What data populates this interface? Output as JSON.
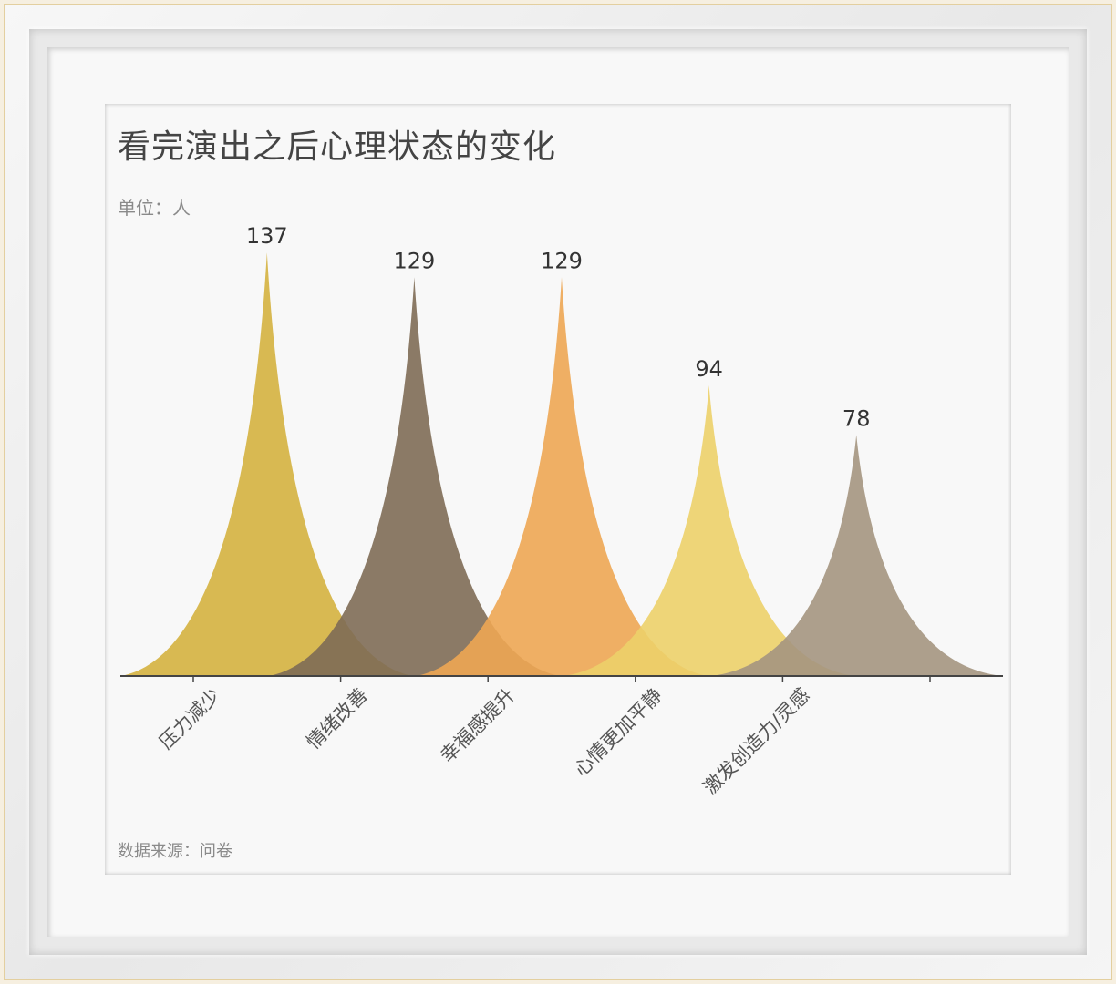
{
  "chart_data": {
    "type": "bar",
    "style": "pictorial-spike",
    "title": "看完演出之后心理状态的变化",
    "unit": "单位：人",
    "source": "数据来源：问卷",
    "categories": [
      "压力减少",
      "情绪改善",
      "幸福感提升",
      "心情更加平静",
      "激发创造力/灵感"
    ],
    "values": [
      137,
      129,
      129,
      94,
      78
    ],
    "colors": [
      "#d4b13f",
      "#7e6c55",
      "#eda653",
      "#ecd069",
      "#a49580"
    ],
    "ylim": [
      0,
      145
    ],
    "grid": false,
    "legend": "none"
  }
}
